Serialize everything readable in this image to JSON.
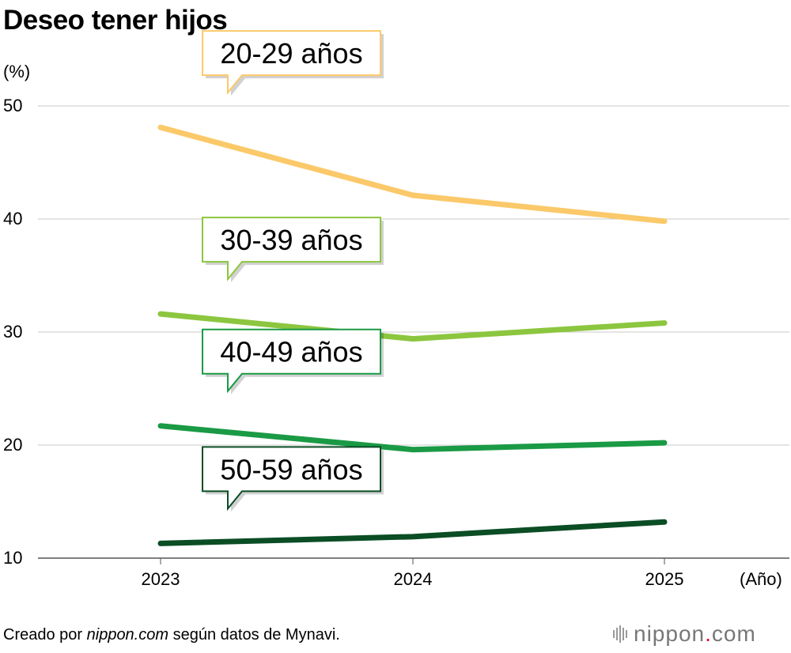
{
  "title": "Deseo tener hijos",
  "y_unit": "(%)",
  "x_unit": "(Año)",
  "footer": {
    "prefix": "Creado por ",
    "site": "nippon.com",
    "suffix": " según datos de Mynavi."
  },
  "logo": {
    "name": "nippon",
    "dot": ".",
    "tld": "com"
  },
  "chart_data": {
    "type": "line",
    "title": "Deseo tener hijos",
    "xlabel": "(Año)",
    "ylabel": "(%)",
    "x": [
      "2023",
      "2024",
      "2025"
    ],
    "ylim": [
      10,
      50
    ],
    "yticks": [
      10,
      20,
      30,
      40,
      50
    ],
    "grid": true,
    "series": [
      {
        "name": "20-29 años",
        "values": [
          48.1,
          42.1,
          39.8
        ],
        "color": "#fbc96a"
      },
      {
        "name": "30-39 años",
        "values": [
          31.6,
          29.4,
          30.8
        ],
        "color": "#8cc63f"
      },
      {
        "name": "40-49 años",
        "values": [
          21.7,
          19.6,
          20.2
        ],
        "color": "#1a9a45"
      },
      {
        "name": "50-59 años",
        "values": [
          11.3,
          11.9,
          13.2
        ],
        "color": "#0b4d24"
      }
    ]
  }
}
